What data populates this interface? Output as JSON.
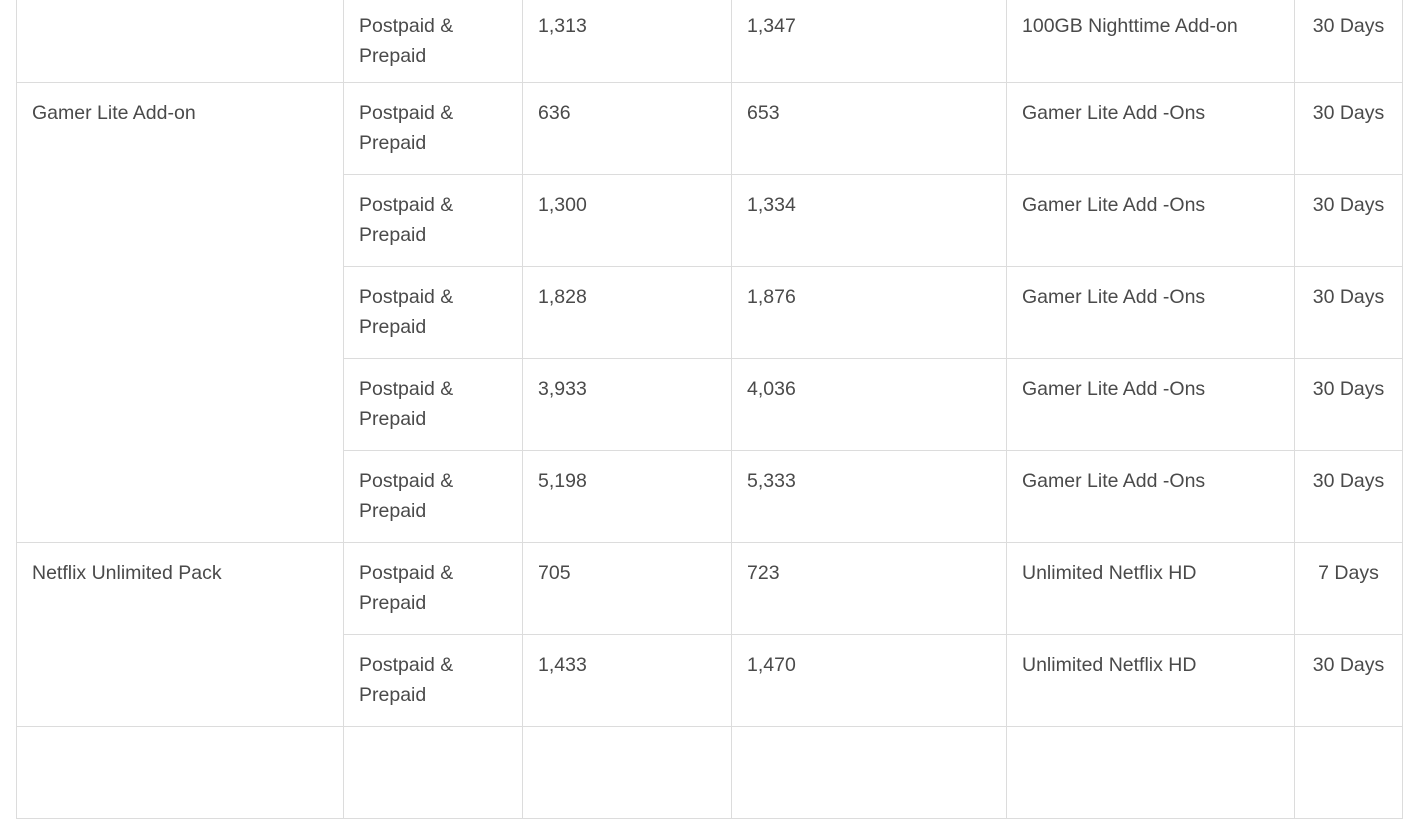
{
  "table": {
    "groups": [
      {
        "name": "",
        "rows": [
          {
            "type": "Postpaid & Prepaid",
            "price1": "1,313",
            "price2": "1,347",
            "bundle": "100GB Nighttime Add-on",
            "validity": "30 Days"
          }
        ]
      },
      {
        "name": "Gamer Lite Add-on",
        "rows": [
          {
            "type": "Postpaid & Prepaid",
            "price1": "636",
            "price2": "653",
            "bundle": "Gamer Lite Add -Ons",
            "validity": "30 Days"
          },
          {
            "type": "Postpaid & Prepaid",
            "price1": "1,300",
            "price2": "1,334",
            "bundle": "Gamer Lite Add -Ons",
            "validity": "30 Days"
          },
          {
            "type": "Postpaid & Prepaid",
            "price1": "1,828",
            "price2": "1,876",
            "bundle": "Gamer Lite Add -Ons",
            "validity": "30 Days"
          },
          {
            "type": "Postpaid & Prepaid",
            "price1": "3,933",
            "price2": "4,036",
            "bundle": "Gamer Lite Add -Ons",
            "validity": "30 Days"
          },
          {
            "type": "Postpaid & Prepaid",
            "price1": "5,198",
            "price2": "5,333",
            "bundle": "Gamer Lite Add -Ons",
            "validity": "30 Days"
          }
        ]
      },
      {
        "name": "Netflix Unlimited Pack",
        "rows": [
          {
            "type": "Postpaid & Prepaid",
            "price1": "705",
            "price2": "723",
            "bundle": "Unlimited Netflix HD",
            "validity": "7 Days"
          },
          {
            "type": "Postpaid & Prepaid",
            "price1": "1,433",
            "price2": "1,470",
            "bundle": "Unlimited Netflix HD",
            "validity": "30 Days"
          }
        ]
      }
    ]
  }
}
